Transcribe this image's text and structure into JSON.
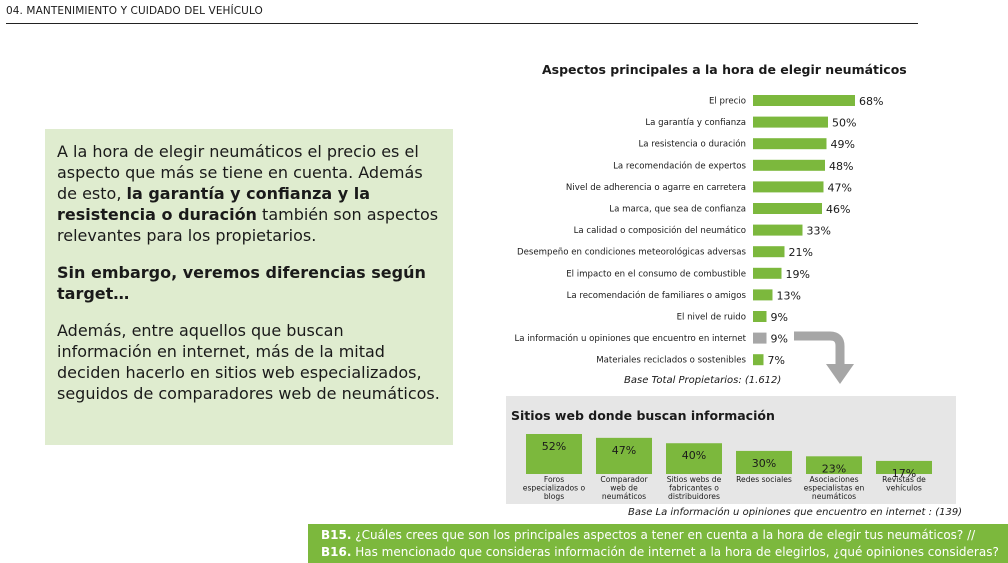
{
  "header": {
    "title": "04. MANTENIMIENTO Y CUIDADO DEL VEHÍCULO"
  },
  "textbox": {
    "p1_a": "A la hora de elegir neumáticos el precio es el aspecto que más se tiene en cuenta. Además de esto, ",
    "p1_b": "la garantía y confianza y la resistencia o duración",
    "p1_c": " también son aspectos relevantes para los propietarios.",
    "p2": "Sin embargo, veremos diferencias según target…",
    "p3": "Además, entre aquellos que buscan información en internet, más de la mitad deciden hacerlo en sitios web especializados, seguidos de comparadores web de neumáticos."
  },
  "colors": {
    "green": "#7cb83d",
    "grey": "#a6a6a6",
    "panel": "#e6e6e6",
    "box": "#dfeccf"
  },
  "chart_data": [
    {
      "type": "bar",
      "orientation": "horizontal",
      "title": "Aspectos principales a la hora de elegir neumáticos",
      "categories": [
        "El precio",
        "La garantía y confianza",
        "La resistencia o duración",
        "La recomendación de expertos",
        "Nivel de adherencia o agarre en carretera",
        "La marca, que sea de confianza",
        "La calidad o composición del neumático",
        "Desempeño en condiciones meteorológicas adversas",
        "El impacto  en el consumo de combustible",
        "La recomendación de familiares o amigos",
        "El nivel de ruido",
        "La información u opiniones que encuentro en internet",
        "Materiales reciclados o sostenibles"
      ],
      "values": [
        68,
        50,
        49,
        48,
        47,
        46,
        33,
        21,
        19,
        13,
        9,
        9,
        7
      ],
      "value_labels": [
        "68%",
        "50%",
        "49%",
        "48%",
        "47%",
        "46%",
        "33%",
        "21%",
        "19%",
        "13%",
        "9%",
        "9%",
        "7%"
      ],
      "highlight_index": 11,
      "base": "Base Total Propietarios: (1.612)"
    },
    {
      "type": "bar",
      "title": "Sitios web donde buscan información",
      "categories": [
        "Foros especializados o blogs",
        "Comparador web de neumáticos",
        "Sitios webs de fabricantes o distribuidores",
        "Redes sociales",
        "Asociaciones especialistas en neumáticos",
        "Revistas de vehículos"
      ],
      "category_lines": [
        [
          "Foros",
          "especializados o",
          "blogs"
        ],
        [
          "Comparador",
          "web de",
          "neumáticos"
        ],
        [
          "Sitios webs de",
          "fabricantes o",
          "distribuidores"
        ],
        [
          "Redes sociales"
        ],
        [
          "Asociaciones",
          "especialistas en",
          "neumáticos"
        ],
        [
          "Revistas de",
          "vehículos"
        ]
      ],
      "values": [
        52,
        47,
        40,
        30,
        23,
        17
      ],
      "value_labels": [
        "52%",
        "47%",
        "40%",
        "30%",
        "23%",
        "17%"
      ],
      "base": "Base La información u opiniones que encuentro en internet : (139)"
    }
  ],
  "footer": {
    "q1_code": "B15.",
    "q1_text": " ¿Cuáles crees que son los principales aspectos a tener en cuenta a la hora de elegir tus neumáticos? //",
    "q2_code": "B16.",
    "q2_text": " Has mencionado que consideras información de internet a la hora de elegirlos, ¿qué opiniones consideras?"
  }
}
